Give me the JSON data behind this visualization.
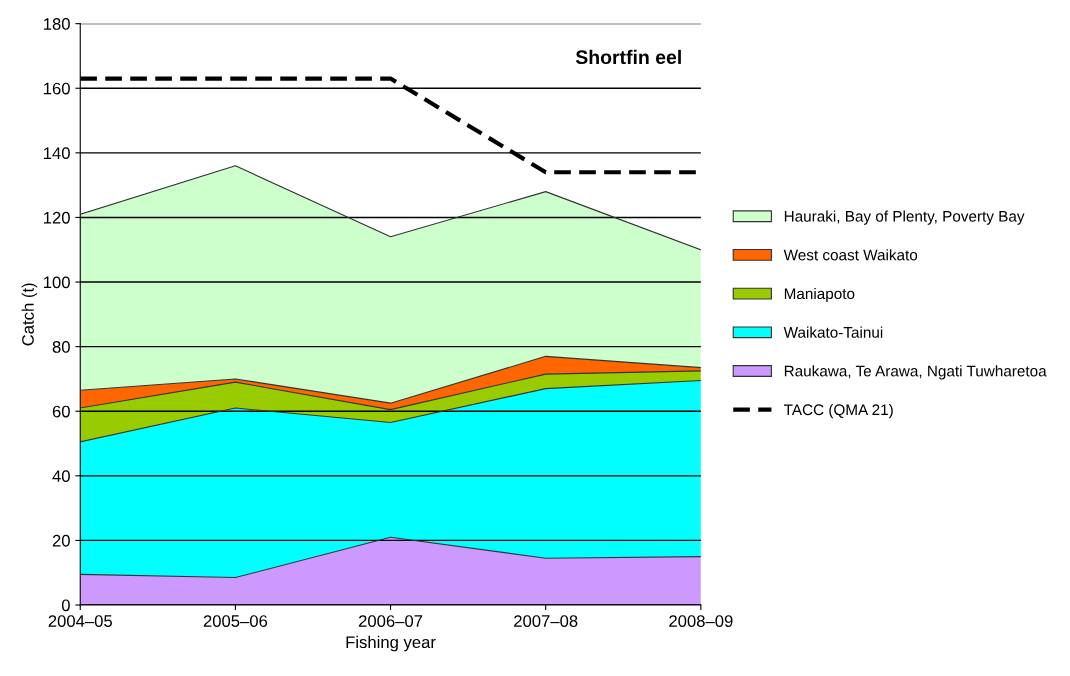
{
  "chart_data": {
    "type": "area",
    "stacked": true,
    "title": "Shortfin eel",
    "xlabel": "Fishing year",
    "ylabel": "Catch (t)",
    "categories": [
      "2004–05",
      "2005–06",
      "2006–07",
      "2007–08",
      "2008–09"
    ],
    "series": [
      {
        "name": "Raukawa, Te Arawa, Ngati Tuwharetoa",
        "color": "#cc99ff",
        "values": [
          9.5,
          8.5,
          21,
          14.5,
          15
        ]
      },
      {
        "name": "Waikato-Tainui",
        "color": "#00ffff",
        "values": [
          41,
          52.5,
          35.5,
          52.5,
          54.5
        ]
      },
      {
        "name": "Maniapoto",
        "color": "#99cc00",
        "values": [
          10.5,
          8,
          4,
          4.5,
          3
        ]
      },
      {
        "name": "West coast Waikato",
        "color": "#ff6600",
        "values": [
          5.5,
          1,
          2,
          5.5,
          1
        ]
      },
      {
        "name": "Hauraki, Bay of Plenty, Poverty Bay",
        "color": "#ccffcc",
        "values": [
          54.5,
          66,
          51.5,
          51,
          36.5
        ]
      },
      {
        "name": "TACC (QMA 21)",
        "type": "line",
        "color": "#000000",
        "line_style": "dashed",
        "values": [
          163,
          163,
          163,
          134,
          134
        ]
      }
    ],
    "ylim": [
      0,
      180
    ],
    "yticks": [
      0,
      20,
      40,
      60,
      80,
      100,
      120,
      140,
      160,
      180
    ],
    "grid": "y",
    "legend": "right"
  }
}
